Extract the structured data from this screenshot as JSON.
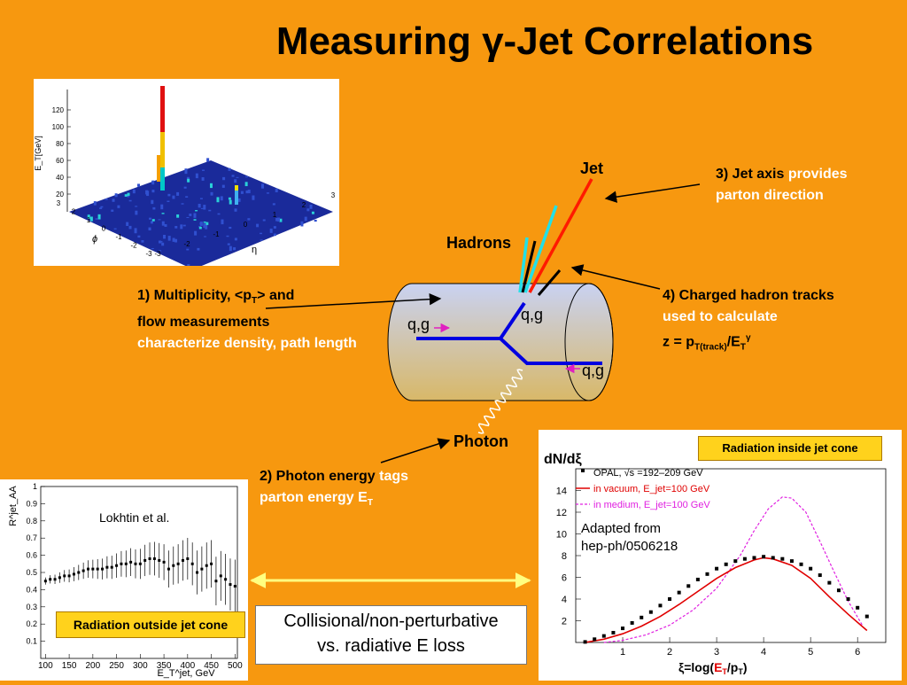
{
  "title": "Measuring γ-Jet Correlations",
  "colors": {
    "background": "#f7980f",
    "jet": "#ff1a00",
    "cyan_tracks": "#22e0e8",
    "quark_lines": "#0000e0",
    "tag_box": "#ffd21c",
    "in_medium": "#e020e0",
    "in_vacuum": "#e00000"
  },
  "diagram": {
    "labels": {
      "jet": "Jet",
      "hadrons": "Hadrons",
      "photon": "Photon",
      "qg_left": "q,g",
      "qg_top": "q,g",
      "qg_right": "q,g"
    },
    "note1": {
      "part1": "1) Multiplicity, <p",
      "sub": "T",
      "part2": "> and",
      "line2": "flow measurements",
      "white": "characterize density, path length"
    },
    "note2": {
      "bold": "2) Photon energy",
      "white1": "tags",
      "white2": "parton energy E",
      "sub": "T"
    },
    "note3": {
      "bold": "3) Jet axis",
      "white1": "provides",
      "white2": "parton direction"
    },
    "note4": {
      "line1": "4) Charged hadron tracks",
      "line2": "used to calculate",
      "formula": "z = p",
      "sub": "T(track)",
      "slash": "/E",
      "sub2": "T",
      "sup": "γ"
    }
  },
  "lego_plot": {
    "zlabel": "E_T[GeV]",
    "z_ticks": [
      "20",
      "40",
      "60",
      "80",
      "100",
      "120"
    ],
    "phi_label": "ϕ",
    "eta_label": "η",
    "phi_ticks": [
      "3",
      "2",
      "1",
      "0",
      "-1",
      "-2",
      "-3"
    ],
    "eta_ticks": [
      "-3",
      "-2",
      "-1",
      "0",
      "1",
      "2",
      "3"
    ]
  },
  "raa_plot": {
    "ylabel": "R^jet_AA",
    "annotation": "Lokhtin et al.",
    "y_ticks": [
      "0.1",
      "0.2",
      "0.3",
      "0.4",
      "0.5",
      "0.6",
      "0.7",
      "0.8",
      "0.9",
      "1"
    ],
    "x_ticks": [
      "100",
      "150",
      "200",
      "250",
      "300",
      "350",
      "400",
      "450",
      "500"
    ],
    "xlabel": "E_T^jet, GeV",
    "tag": "Radiation outside jet cone"
  },
  "middle_box": {
    "line1": "Collisional/non-perturbative",
    "line2": "vs. radiative E loss"
  },
  "dndxi_plot": {
    "ylabel": "dN/dξ",
    "tag": "Radiation inside jet cone",
    "legend": {
      "opal": "OPAL, √s =192–209 GeV",
      "vacuum": "in vacuum, E_jet=100 GeV",
      "medium": "in medium, E_jet=100 GeV"
    },
    "adapted": [
      "Adapted from",
      "hep-ph/0506218"
    ],
    "x_label": "ξ=log(E_T/p_T)",
    "xlabel_parts": {
      "a": "ξ=log(",
      "b": "E",
      "b_sub": "T",
      "c": "/p",
      "c_sub": "T",
      "d": ")"
    },
    "x_ticks": [
      "1",
      "2",
      "3",
      "4",
      "5",
      "6"
    ],
    "y_ticks": [
      "2",
      "4",
      "6",
      "8",
      "10",
      "12",
      "14"
    ]
  },
  "chart_data": [
    {
      "type": "scatter",
      "title": "",
      "xlabel": "E_T^jet, GeV",
      "ylabel": "R^jet_AA",
      "xlim": [
        90,
        505
      ],
      "ylim": [
        0,
        1.0
      ],
      "grid": false,
      "series": [
        {
          "name": "",
          "x": [
            100,
            110,
            120,
            130,
            140,
            150,
            160,
            170,
            180,
            190,
            200,
            210,
            220,
            230,
            240,
            250,
            260,
            270,
            280,
            290,
            300,
            310,
            320,
            330,
            340,
            350,
            360,
            370,
            380,
            390,
            400,
            410,
            420,
            430,
            440,
            450,
            460,
            470,
            480,
            490,
            500
          ],
          "y": [
            0.45,
            0.46,
            0.46,
            0.47,
            0.48,
            0.48,
            0.49,
            0.5,
            0.51,
            0.52,
            0.52,
            0.52,
            0.52,
            0.53,
            0.53,
            0.54,
            0.55,
            0.55,
            0.56,
            0.55,
            0.55,
            0.57,
            0.58,
            0.58,
            0.57,
            0.56,
            0.52,
            0.54,
            0.55,
            0.57,
            0.58,
            0.55,
            0.5,
            0.52,
            0.54,
            0.55,
            0.45,
            0.48,
            0.46,
            0.43,
            0.42
          ]
        }
      ]
    },
    {
      "type": "line",
      "title": "",
      "xlabel": "ξ=log(E_T/p_T)",
      "ylabel": "dN/dξ",
      "xlim": [
        0,
        6.6
      ],
      "ylim": [
        0,
        16
      ],
      "grid": false,
      "legend_position": "top-left",
      "series": [
        {
          "name": "OPAL, √s =192–209 GeV",
          "x": [
            0.2,
            0.4,
            0.6,
            0.8,
            1.0,
            1.2,
            1.4,
            1.6,
            1.8,
            2.0,
            2.2,
            2.4,
            2.6,
            2.8,
            3.0,
            3.2,
            3.4,
            3.6,
            3.8,
            4.0,
            4.2,
            4.4,
            4.6,
            4.8,
            5.0,
            5.2,
            5.4,
            5.6,
            5.8,
            6.0,
            6.2
          ],
          "y": [
            0.05,
            0.3,
            0.6,
            0.9,
            1.3,
            1.8,
            2.3,
            2.8,
            3.4,
            4.0,
            4.6,
            5.2,
            5.8,
            6.3,
            6.8,
            7.2,
            7.5,
            7.7,
            7.8,
            7.9,
            7.8,
            7.7,
            7.5,
            7.2,
            6.8,
            6.2,
            5.5,
            4.8,
            4.0,
            3.2,
            2.4
          ]
        },
        {
          "name": "in vacuum, E_jet=100 GeV",
          "x": [
            0.2,
            0.6,
            1.0,
            1.4,
            1.8,
            2.2,
            2.6,
            3.0,
            3.4,
            3.8,
            4.0,
            4.2,
            4.6,
            5.0,
            5.4,
            5.8,
            6.2
          ],
          "y": [
            0.0,
            0.3,
            0.8,
            1.5,
            2.4,
            3.5,
            4.7,
            5.9,
            6.9,
            7.6,
            7.8,
            7.7,
            7.1,
            5.9,
            4.2,
            2.6,
            1.1
          ]
        },
        {
          "name": "in medium, E_jet=100 GeV",
          "x": [
            0.6,
            1.0,
            1.5,
            2.0,
            2.5,
            3.0,
            3.5,
            3.8,
            4.1,
            4.4,
            4.6,
            4.9,
            5.2,
            5.5,
            5.8,
            6.1
          ],
          "y": [
            0.0,
            0.2,
            0.7,
            1.6,
            3.0,
            5.0,
            8.0,
            10.3,
            12.3,
            13.4,
            13.3,
            12.0,
            9.3,
            6.5,
            3.8,
            1.6
          ]
        }
      ]
    }
  ]
}
